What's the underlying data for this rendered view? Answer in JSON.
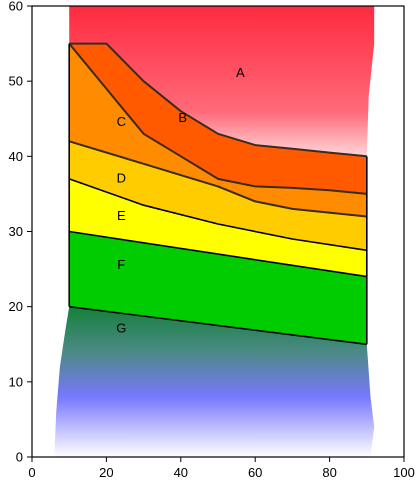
{
  "chart_data": {
    "type": "area",
    "xlim": [
      0,
      100
    ],
    "ylim": [
      0,
      60
    ],
    "x_ticks": [
      0,
      20,
      40,
      60,
      80,
      100
    ],
    "y_ticks": [
      0,
      10,
      20,
      30,
      40,
      50,
      60
    ],
    "grid": false,
    "background": {
      "top_region": {
        "name": "A",
        "color": "#ff3b4e",
        "fade_color": "#ffe6e8"
      },
      "bottom_region": {
        "name": "G",
        "fade_from": "#1e8a3c",
        "mid_color": "#7878ff",
        "fade_to": "#ffffff"
      }
    },
    "boundaries": [
      {
        "id": "A/B",
        "points": [
          [
            10,
            55
          ],
          [
            20,
            55
          ],
          [
            30,
            50
          ],
          [
            40,
            46
          ],
          [
            50,
            43
          ],
          [
            60,
            41.5
          ],
          [
            70,
            41
          ],
          [
            80,
            40.5
          ],
          [
            90,
            40
          ]
        ]
      },
      {
        "id": "B/C",
        "points": [
          [
            10,
            55
          ],
          [
            20,
            49
          ],
          [
            30,
            43
          ],
          [
            40,
            40
          ],
          [
            50,
            37
          ],
          [
            60,
            36
          ],
          [
            70,
            35.8
          ],
          [
            80,
            35.5
          ],
          [
            90,
            35
          ]
        ]
      },
      {
        "id": "C/D",
        "points": [
          [
            10,
            42
          ],
          [
            30,
            39
          ],
          [
            50,
            36
          ],
          [
            60,
            34
          ],
          [
            70,
            33
          ],
          [
            90,
            32
          ]
        ]
      },
      {
        "id": "D/E",
        "points": [
          [
            10,
            37
          ],
          [
            30,
            33.5
          ],
          [
            50,
            31
          ],
          [
            70,
            29
          ],
          [
            90,
            27.5
          ]
        ]
      },
      {
        "id": "E/F",
        "points": [
          [
            10,
            30
          ],
          [
            90,
            24
          ]
        ]
      },
      {
        "id": "F/G",
        "points": [
          [
            10,
            20
          ],
          [
            90,
            15
          ]
        ]
      }
    ],
    "regions": [
      {
        "name": "A",
        "color": "#ff3b4e",
        "label_pos": [
          56,
          51
        ]
      },
      {
        "name": "B",
        "color": "#ff5a00",
        "label_pos": [
          40.5,
          45
        ],
        "between": [
          "A/B",
          "B/C"
        ]
      },
      {
        "name": "C",
        "color": "#ff8c00",
        "label_pos": [
          24,
          44.5
        ],
        "between": [
          "B/C",
          "C/D"
        ]
      },
      {
        "name": "D",
        "color": "#ffcc00",
        "label_pos": [
          24,
          37
        ],
        "between": [
          "C/D",
          "D/E"
        ]
      },
      {
        "name": "E",
        "color": "#ffff00",
        "label_pos": [
          24,
          32
        ],
        "between": [
          "D/E",
          "E/F"
        ]
      },
      {
        "name": "F",
        "color": "#00cc00",
        "label_pos": [
          24,
          25.5
        ],
        "between": [
          "E/F",
          "F/G"
        ]
      },
      {
        "name": "G",
        "color": "#3c9a5a",
        "label_pos": [
          24,
          17
        ]
      }
    ]
  }
}
